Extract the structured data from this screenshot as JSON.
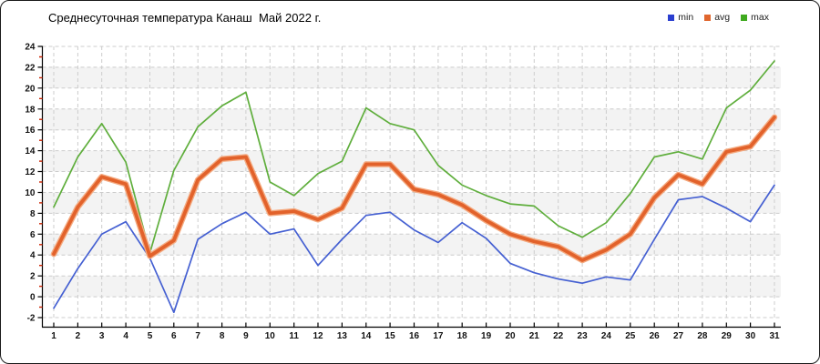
{
  "title": "Среднесуточная температура Канаш  Май 2022 г.",
  "chart_data": {
    "type": "line",
    "title": "Среднесуточная температура Канаш  Май 2022 г.",
    "xlabel": "",
    "ylabel": "",
    "ylim": [
      -2,
      24
    ],
    "grid": true,
    "legend_position": "top-right",
    "x": [
      1,
      2,
      3,
      4,
      5,
      6,
      7,
      8,
      9,
      10,
      11,
      12,
      13,
      14,
      15,
      16,
      17,
      18,
      19,
      20,
      21,
      22,
      23,
      24,
      25,
      26,
      27,
      28,
      29,
      30,
      31
    ],
    "y_ticks": [
      24,
      22,
      20,
      18,
      16,
      14,
      12,
      10,
      8,
      6,
      4,
      2,
      0,
      -2
    ],
    "series": [
      {
        "name": "min",
        "color": "#4560d2",
        "swatch": "#2b3fd0",
        "values": [
          -1.1,
          2.7,
          6.0,
          7.2,
          3.7,
          -1.5,
          5.5,
          7.0,
          8.1,
          6.0,
          6.5,
          3.0,
          5.5,
          7.8,
          8.1,
          6.4,
          5.2,
          7.1,
          5.6,
          3.2,
          2.3,
          1.7,
          1.3,
          1.9,
          1.6,
          5.5,
          9.3,
          9.6,
          8.5,
          7.2,
          10.7
        ]
      },
      {
        "name": "avg",
        "color": "#e2622b",
        "halo": "#f4aa80",
        "swatch": "#e0662e",
        "values": [
          4.1,
          8.6,
          11.5,
          10.8,
          3.9,
          5.4,
          11.2,
          13.2,
          13.4,
          8.0,
          8.2,
          7.4,
          8.5,
          12.7,
          12.7,
          10.3,
          9.8,
          8.8,
          7.3,
          6.0,
          5.3,
          4.8,
          3.5,
          4.5,
          6.0,
          9.5,
          11.7,
          10.8,
          13.9,
          14.4,
          17.2
        ]
      },
      {
        "name": "max",
        "color": "#5fae3c",
        "swatch": "#3faa1f",
        "values": [
          8.6,
          13.4,
          16.6,
          12.9,
          4.2,
          12.1,
          16.3,
          18.3,
          19.6,
          11.0,
          9.7,
          11.8,
          13.0,
          18.1,
          16.6,
          16.0,
          12.6,
          10.7,
          9.7,
          8.9,
          8.7,
          6.8,
          5.7,
          7.1,
          9.9,
          13.4,
          13.9,
          13.2,
          18.1,
          19.8,
          22.6
        ]
      }
    ],
    "colors": {
      "band": "#f3f3f3",
      "grid": "#cccccc",
      "axis": "#000000",
      "minor_tick": "#cc2200",
      "tick_text": "#111111"
    }
  }
}
